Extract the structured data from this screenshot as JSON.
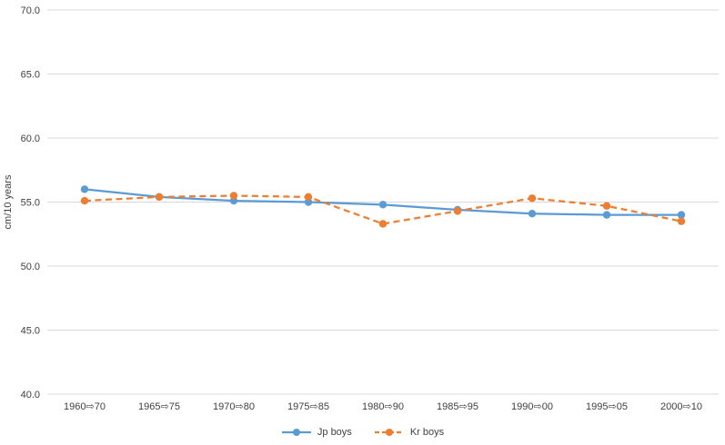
{
  "page": {
    "background": "#FFFFFF"
  },
  "chart_data": {
    "type": "line",
    "title": "",
    "xlabel": "",
    "ylabel": "cm/10 years",
    "categories": [
      "1960⇨70",
      "1965⇨75",
      "1970⇨80",
      "1975⇨85",
      "1980⇨90",
      "1985⇨95",
      "1990⇨00",
      "1995⇨05",
      "2000⇨10"
    ],
    "series": [
      {
        "name": "Jp boys",
        "color": "#5B9BD5",
        "line_style": "solid",
        "marker": "circle",
        "values": [
          56.0,
          55.4,
          55.1,
          55.0,
          54.8,
          54.4,
          54.1,
          54.0,
          54.0
        ]
      },
      {
        "name": "Kr boys",
        "color": "#ED7D31",
        "line_style": "dashed",
        "marker": "circle",
        "values": [
          55.1,
          55.4,
          55.5,
          55.4,
          53.3,
          54.3,
          55.3,
          54.7,
          53.5
        ]
      }
    ],
    "ylim": [
      40.0,
      70.0
    ],
    "ytick_step": 5,
    "ytick_format_decimals": 1,
    "grid": true,
    "grid_color": "#D9D9D9",
    "text_color": "#404040",
    "legend_position": "bottom"
  }
}
